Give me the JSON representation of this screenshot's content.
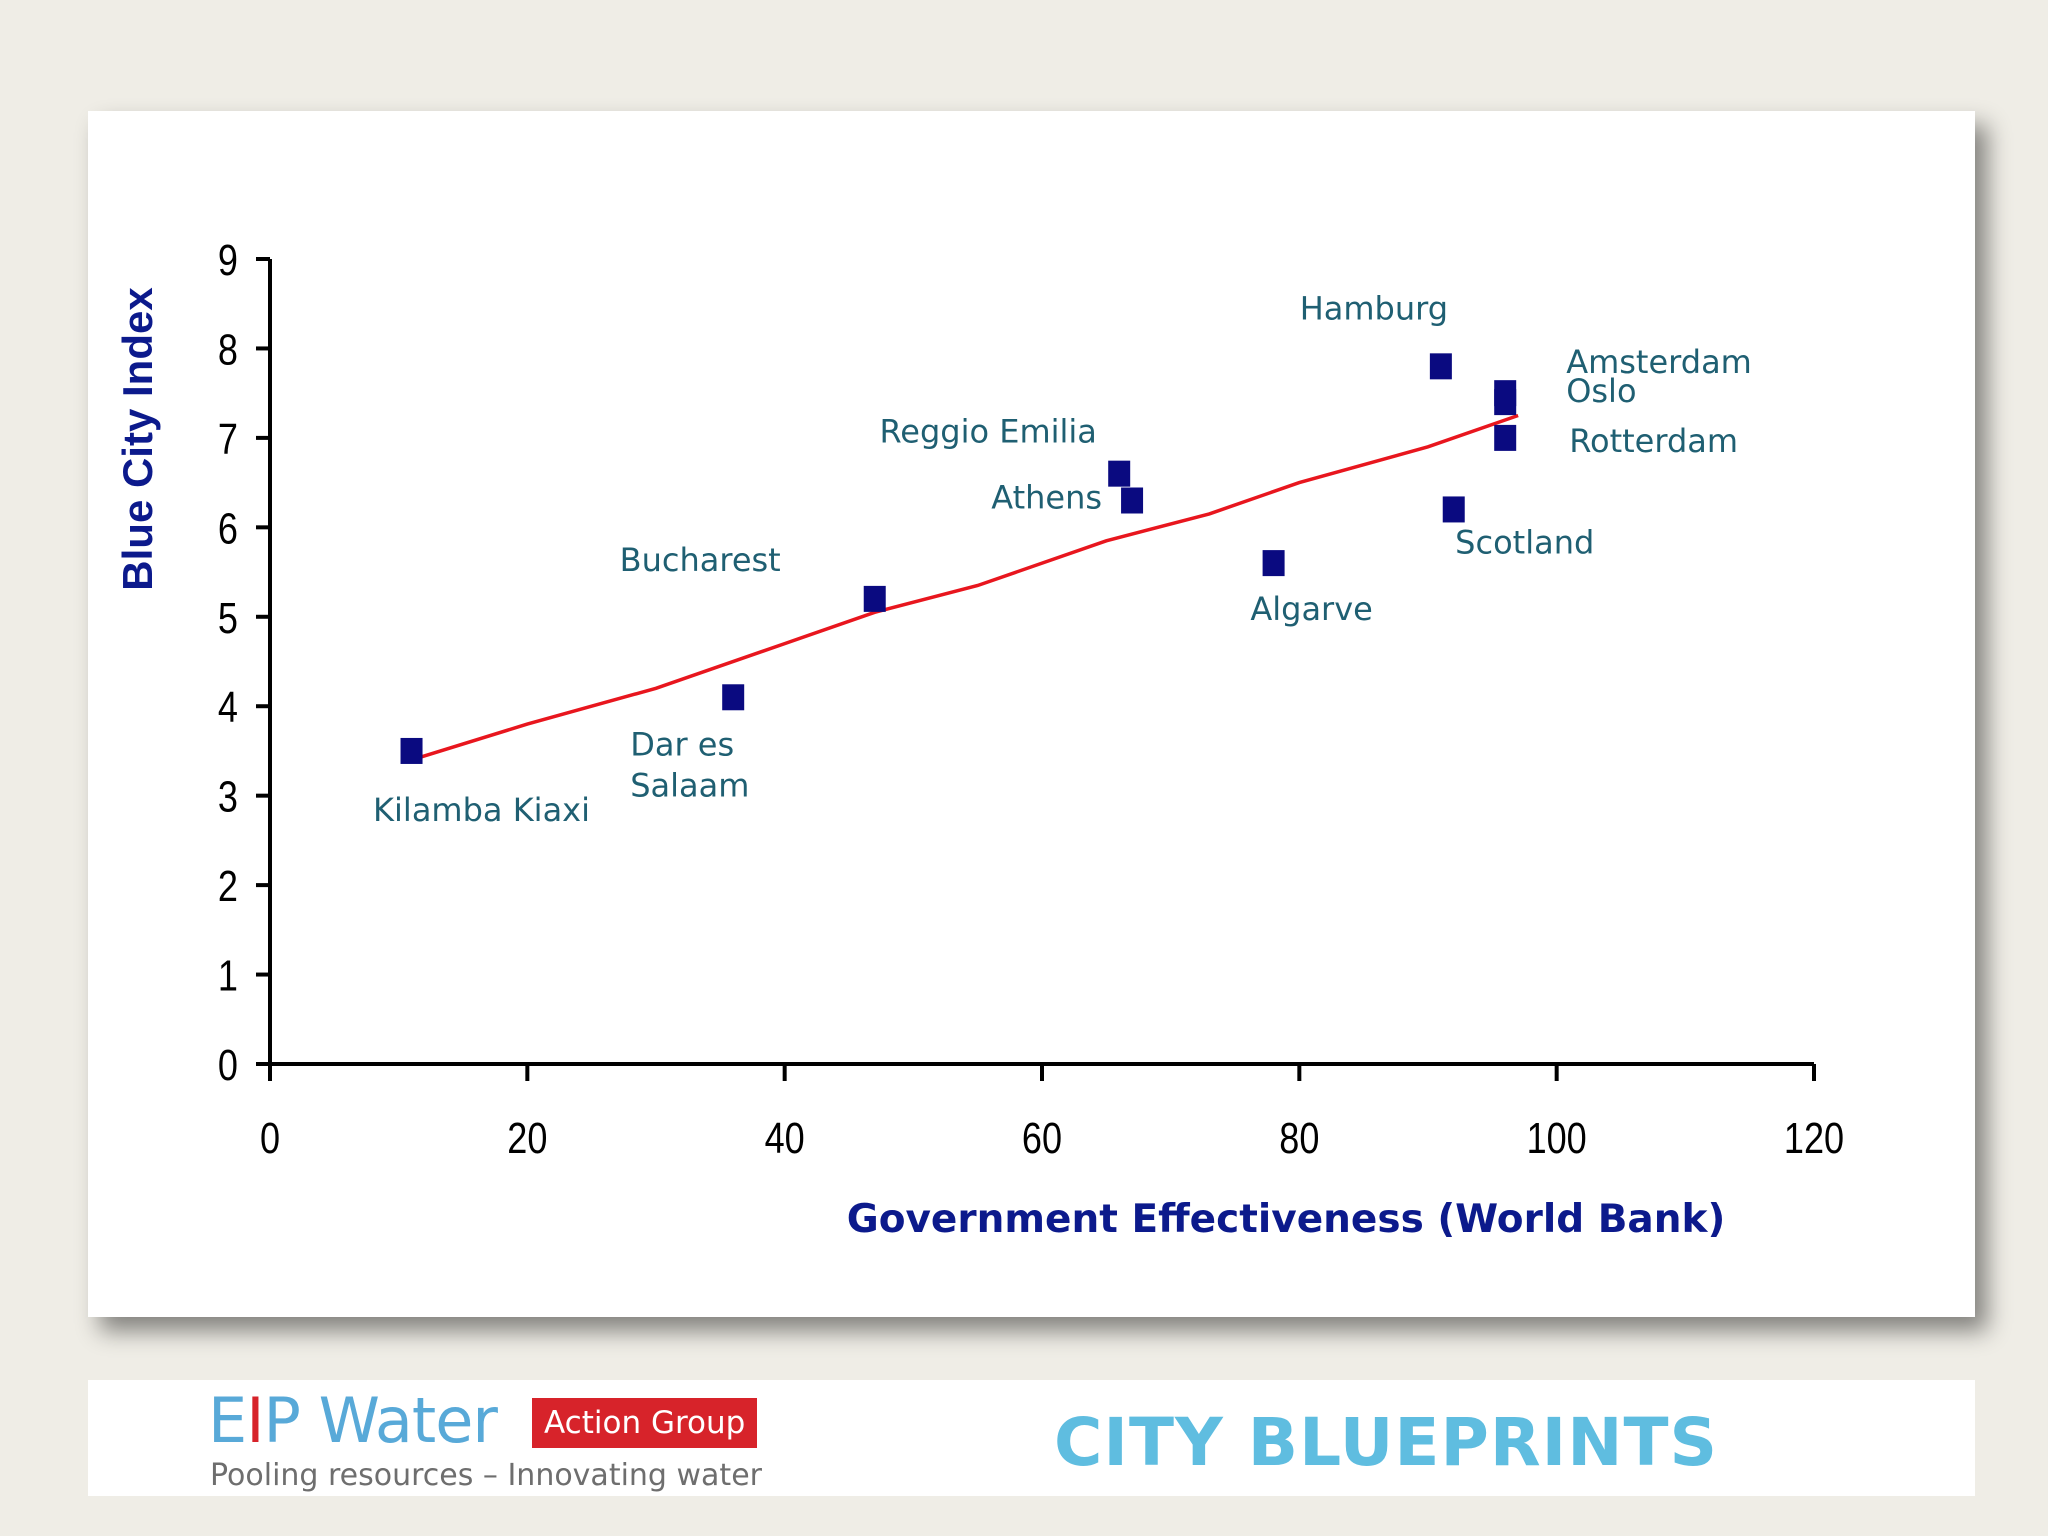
{
  "chart_data": {
    "type": "scatter",
    "xlabel": "Government Effectiveness (World Bank)",
    "ylabel": "Blue City Index",
    "xlim": [
      0,
      120
    ],
    "ylim": [
      0,
      9
    ],
    "x_ticks": [
      "0",
      "20",
      "40",
      "60",
      "80",
      "100",
      "120"
    ],
    "y_ticks": [
      "0",
      "1",
      "2",
      "3",
      "4",
      "5",
      "6",
      "7",
      "8",
      "9"
    ],
    "points": [
      {
        "label": "Kilamba Kiaxi",
        "x": 11,
        "y": 3.5
      },
      {
        "label": "Dar es Salaam",
        "x": 36,
        "y": 4.1
      },
      {
        "label": "Bucharest",
        "x": 47,
        "y": 5.2
      },
      {
        "label": "Reggio Emilia",
        "x": 66,
        "y": 6.6
      },
      {
        "label": "Athens",
        "x": 67,
        "y": 6.3
      },
      {
        "label": "Algarve",
        "x": 78,
        "y": 5.6
      },
      {
        "label": "Hamburg",
        "x": 91,
        "y": 7.8
      },
      {
        "label": "Scotland",
        "x": 92,
        "y": 6.2
      },
      {
        "label": "Amsterdam",
        "x": 96,
        "y": 7.5
      },
      {
        "label": "Oslo",
        "x": 96,
        "y": 7.4
      },
      {
        "label": "Rotterdam",
        "x": 96,
        "y": 7.0
      }
    ],
    "trendline": [
      [
        11,
        3.4
      ],
      [
        20,
        3.8
      ],
      [
        30,
        4.2
      ],
      [
        40,
        4.7
      ],
      [
        47,
        5.05
      ],
      [
        55,
        5.35
      ],
      [
        65,
        5.85
      ],
      [
        73,
        6.15
      ],
      [
        80,
        6.5
      ],
      [
        90,
        6.9
      ],
      [
        97,
        7.25
      ]
    ],
    "marker_color": "#0a0a80",
    "trend_color": "#e8161e",
    "grid": false,
    "legend": "none"
  },
  "footer": {
    "logo_e": "E",
    "logo_i": "I",
    "logo_rest": "P Water",
    "logo_badge": "Action Group",
    "logo_tagline": "Pooling resources – Innovating water",
    "title": "CITY BLUEPRINTS"
  }
}
